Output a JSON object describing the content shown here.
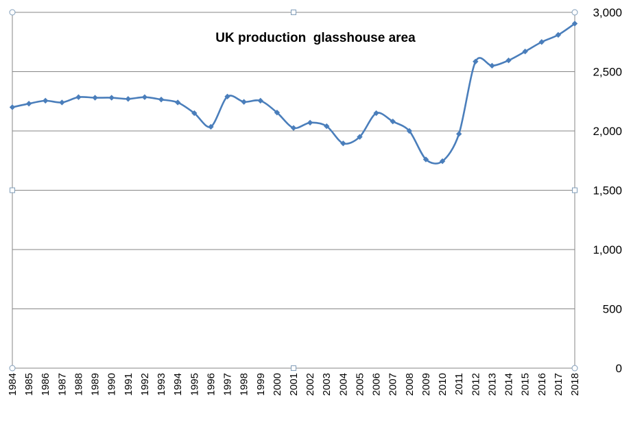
{
  "chart_data": {
    "type": "line",
    "title": "UK production  glasshouse area",
    "xlabel": "",
    "ylabel": "",
    "ylim": [
      0,
      3000
    ],
    "y_ticks": [
      "0",
      "500",
      "1,000",
      "1,500",
      "2,000",
      "2,500",
      "3,000"
    ],
    "y_axis_side": "right",
    "grid": true,
    "smoothed": true,
    "series_color": "#4a7ebb",
    "categories": [
      "1984",
      "1985",
      "1986",
      "1987",
      "1988",
      "1989",
      "1990",
      "1991",
      "1992",
      "1993",
      "1994",
      "1995",
      "1996",
      "1997",
      "1998",
      "1999",
      "2000",
      "2001",
      "2002",
      "2003",
      "2004",
      "2005",
      "2006",
      "2007",
      "2008",
      "2009",
      "2010",
      "2011",
      "2012",
      "2013",
      "2014",
      "2015",
      "2016",
      "2017",
      "2018"
    ],
    "series": [
      {
        "values": [
          2200,
          2230,
          2255,
          2240,
          2285,
          2280,
          2280,
          2270,
          2285,
          2265,
          2240,
          2150,
          2035,
          2290,
          2245,
          2255,
          2155,
          2025,
          2070,
          2040,
          1895,
          1950,
          2150,
          2080,
          2000,
          1760,
          1745,
          1975,
          2585,
          2550,
          2595,
          2670,
          2750,
          2810,
          2905
        ]
      }
    ]
  }
}
